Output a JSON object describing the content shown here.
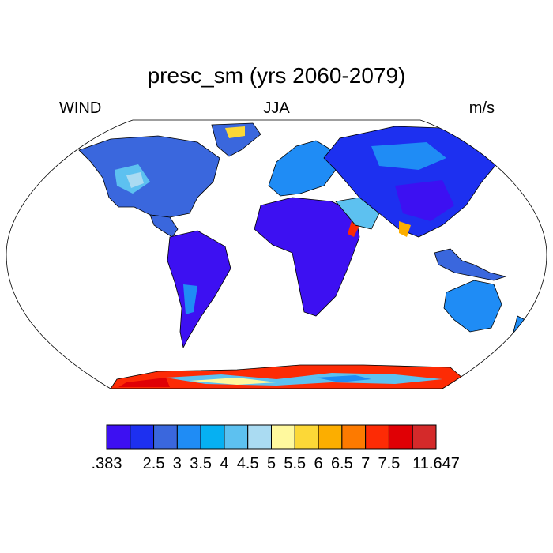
{
  "map": {
    "title": "presc_sm (yrs 2060-2079)",
    "left_label": "WIND",
    "center_label": "JJA",
    "right_label": "m/s",
    "projection": "Robinson",
    "legend": {
      "colors": [
        "#3d10f2",
        "#1d30f0",
        "#3a67dd",
        "#1f8cf5",
        "#06b0f2",
        "#5dc1f0",
        "#aadbf2",
        "#fff99e",
        "#fcd837",
        "#fcae00",
        "#fd7a00",
        "#fd2b05",
        "#e00005",
        "#d42a2a"
      ],
      "labels": [
        ".383",
        "2.5",
        "3",
        "3.5",
        "4",
        "4.5",
        "5",
        "5.5",
        "6",
        "6.5",
        "7",
        "7.5",
        "11.647"
      ]
    }
  }
}
